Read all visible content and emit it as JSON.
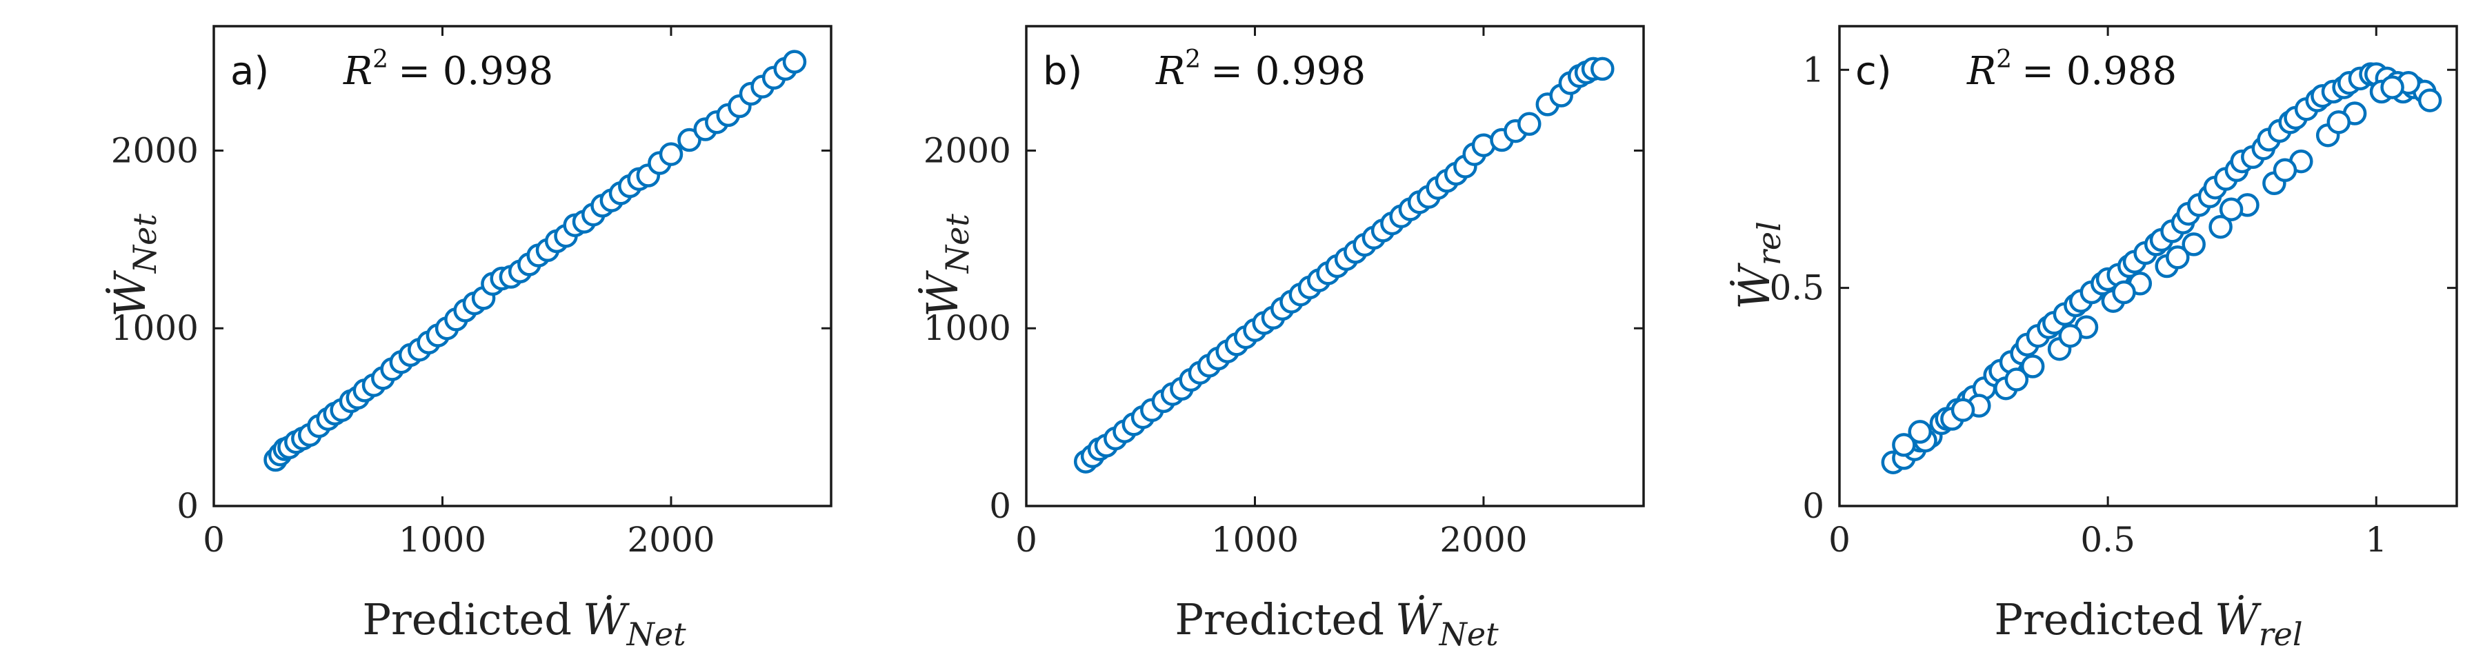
{
  "colors": {
    "marker_edge": "#0072BD",
    "marker_face": "#ffffff",
    "axes": "#1a1a1a"
  },
  "r2_prefix": "R",
  "r2_exp": "2",
  "panels": [
    {
      "id": "a",
      "letter": "a)",
      "r2_value": "= 0.998",
      "xlabel_prefix": "Predicted",
      "w_symbol": "Ẇ",
      "sub": "Net",
      "xticks": [
        "0",
        "1000",
        "2000"
      ],
      "yticks": [
        "0",
        "1000",
        "2000"
      ]
    },
    {
      "id": "b",
      "letter": "b)",
      "r2_value": "= 0.998",
      "xlabel_prefix": "Predicted",
      "w_symbol": "Ẇ",
      "sub": "Net",
      "xticks": [
        "0",
        "1000",
        "2000"
      ],
      "yticks": [
        "0",
        "1000",
        "2000"
      ]
    },
    {
      "id": "c",
      "letter": "c)",
      "r2_value": "= 0.988",
      "xlabel_prefix": "Predicted",
      "w_symbol": "Ẇ",
      "sub": "rel",
      "xticks": [
        "0",
        "0.5",
        "1"
      ],
      "yticks": [
        "0",
        "0.5",
        "1"
      ]
    }
  ],
  "chart_data": [
    {
      "type": "scatter",
      "title": "a)",
      "annotation": "R^2 = 0.998",
      "xlabel": "Predicted Ẇ_Net",
      "ylabel": "Ẇ_Net",
      "xlim": [
        0,
        2700
      ],
      "ylim": [
        0,
        2700
      ],
      "xticks": [
        0,
        1000,
        2000
      ],
      "yticks": [
        0,
        1000,
        2000
      ],
      "x": [
        270,
        290,
        310,
        330,
        360,
        390,
        420,
        460,
        500,
        530,
        560,
        600,
        630,
        660,
        700,
        740,
        780,
        820,
        860,
        900,
        940,
        980,
        1020,
        1060,
        1100,
        1140,
        1180,
        1220,
        1260,
        1300,
        1340,
        1380,
        1420,
        1460,
        1500,
        1540,
        1580,
        1620,
        1660,
        1700,
        1740,
        1780,
        1820,
        1860,
        1900,
        1950,
        2000,
        2080,
        2150,
        2200,
        2250,
        2300,
        2350,
        2400,
        2450,
        2500,
        2540
      ],
      "y": [
        260,
        290,
        320,
        330,
        360,
        380,
        400,
        450,
        490,
        520,
        540,
        590,
        610,
        650,
        680,
        720,
        770,
        810,
        850,
        880,
        920,
        960,
        1000,
        1050,
        1100,
        1140,
        1170,
        1250,
        1280,
        1290,
        1320,
        1360,
        1410,
        1440,
        1490,
        1520,
        1580,
        1600,
        1640,
        1690,
        1720,
        1760,
        1800,
        1840,
        1860,
        1930,
        1980,
        2060,
        2120,
        2160,
        2200,
        2250,
        2320,
        2360,
        2410,
        2460,
        2500
      ]
    },
    {
      "type": "scatter",
      "title": "b)",
      "annotation": "R^2 = 0.998",
      "xlabel": "Predicted Ẇ_Net",
      "ylabel": "Ẇ_Net",
      "xlim": [
        0,
        2700
      ],
      "ylim": [
        0,
        2700
      ],
      "xticks": [
        0,
        1000,
        2000
      ],
      "yticks": [
        0,
        1000,
        2000
      ],
      "x": [
        260,
        290,
        320,
        350,
        390,
        430,
        470,
        510,
        550,
        600,
        640,
        680,
        720,
        760,
        800,
        840,
        880,
        920,
        960,
        1000,
        1040,
        1080,
        1120,
        1160,
        1200,
        1240,
        1280,
        1320,
        1360,
        1400,
        1440,
        1480,
        1520,
        1560,
        1600,
        1640,
        1680,
        1720,
        1760,
        1800,
        1840,
        1880,
        1920,
        1960,
        2000,
        2080,
        2140,
        2200,
        2280,
        2340,
        2380,
        2420,
        2450,
        2480,
        2520
      ],
      "y": [
        250,
        280,
        320,
        340,
        380,
        420,
        460,
        500,
        540,
        590,
        630,
        660,
        710,
        750,
        790,
        830,
        870,
        910,
        950,
        990,
        1030,
        1060,
        1110,
        1150,
        1190,
        1230,
        1270,
        1310,
        1350,
        1390,
        1430,
        1470,
        1510,
        1550,
        1590,
        1630,
        1670,
        1710,
        1740,
        1790,
        1830,
        1870,
        1910,
        1980,
        2030,
        2060,
        2110,
        2150,
        2260,
        2310,
        2380,
        2420,
        2440,
        2460,
        2460
      ]
    },
    {
      "type": "scatter",
      "title": "c)",
      "annotation": "R^2 = 0.988",
      "xlabel": "Predicted Ẇ_rel",
      "ylabel": "Ẇ_rel",
      "xlim": [
        0,
        1.15
      ],
      "ylim": [
        0,
        1.1
      ],
      "xticks": [
        0,
        0.5,
        1
      ],
      "yticks": [
        0,
        0.5,
        1
      ],
      "x": [
        0.1,
        0.12,
        0.14,
        0.15,
        0.17,
        0.19,
        0.2,
        0.22,
        0.24,
        0.25,
        0.27,
        0.29,
        0.3,
        0.32,
        0.34,
        0.35,
        0.37,
        0.39,
        0.4,
        0.42,
        0.44,
        0.45,
        0.47,
        0.49,
        0.5,
        0.52,
        0.54,
        0.55,
        0.57,
        0.59,
        0.6,
        0.62,
        0.64,
        0.65,
        0.67,
        0.69,
        0.7,
        0.72,
        0.74,
        0.75,
        0.77,
        0.79,
        0.8,
        0.82,
        0.84,
        0.85,
        0.87,
        0.89,
        0.9,
        0.92,
        0.94,
        0.95,
        0.97,
        0.99,
        1.0,
        1.02,
        1.04,
        1.05,
        1.07,
        1.09,
        1.1,
        0.12,
        0.16,
        0.21,
        0.26,
        0.31,
        0.36,
        0.41,
        0.46,
        0.51,
        0.56,
        0.61,
        0.66,
        0.71,
        0.76,
        0.81,
        0.86,
        0.91,
        0.96,
        1.01,
        1.06,
        0.15,
        0.23,
        0.33,
        0.43,
        0.53,
        0.63,
        0.73,
        0.83,
        0.93,
        1.03
      ],
      "y": [
        0.1,
        0.11,
        0.13,
        0.15,
        0.16,
        0.19,
        0.2,
        0.22,
        0.24,
        0.25,
        0.27,
        0.3,
        0.31,
        0.33,
        0.35,
        0.37,
        0.39,
        0.41,
        0.42,
        0.44,
        0.46,
        0.47,
        0.49,
        0.51,
        0.52,
        0.53,
        0.55,
        0.56,
        0.58,
        0.6,
        0.61,
        0.63,
        0.65,
        0.67,
        0.69,
        0.71,
        0.73,
        0.75,
        0.77,
        0.79,
        0.8,
        0.82,
        0.84,
        0.86,
        0.88,
        0.89,
        0.91,
        0.93,
        0.94,
        0.95,
        0.96,
        0.97,
        0.98,
        0.99,
        0.99,
        0.98,
        0.97,
        0.95,
        0.96,
        0.95,
        0.93,
        0.14,
        0.15,
        0.2,
        0.23,
        0.27,
        0.32,
        0.36,
        0.41,
        0.47,
        0.51,
        0.55,
        0.6,
        0.64,
        0.69,
        0.74,
        0.79,
        0.85,
        0.9,
        0.95,
        0.97,
        0.17,
        0.22,
        0.29,
        0.39,
        0.49,
        0.57,
        0.68,
        0.77,
        0.88,
        0.96
      ]
    }
  ]
}
